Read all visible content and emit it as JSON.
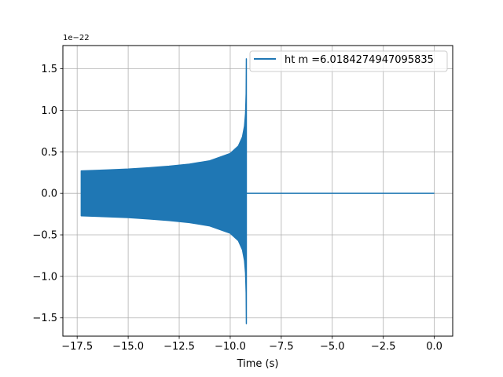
{
  "chart_data": {
    "type": "line",
    "title": "",
    "xlabel": "Time (s)",
    "ylabel": "",
    "y_offset_text": "1e−22",
    "xlim": [
      -18.2,
      0.9
    ],
    "ylim": [
      -1.72,
      1.78
    ],
    "x_ticks": [
      -17.5,
      -15.0,
      -12.5,
      -10.0,
      -7.5,
      -5.0,
      -2.5,
      0.0
    ],
    "x_tick_labels": [
      "−17.5",
      "−15.0",
      "−12.5",
      "−10.0",
      "−7.5",
      "−5.0",
      "−2.5",
      "0.0"
    ],
    "y_ticks": [
      -1.5,
      -1.0,
      -0.5,
      0.0,
      0.5,
      1.0,
      1.5
    ],
    "y_tick_labels": [
      "−1.5",
      "−1.0",
      "−0.5",
      "0.0",
      "0.5",
      "1.0",
      "1.5"
    ],
    "grid": true,
    "legend_placement": "upper right",
    "series": [
      {
        "name": "ht m =6.0184274947095835",
        "color": "#1f77b4",
        "oscillation_envelope_upper": {
          "x": [
            -17.3,
            -16,
            -15,
            -14,
            -13,
            -12,
            -11,
            -10,
            -9.6,
            -9.4,
            -9.3,
            -9.25,
            -9.22,
            -9.21
          ],
          "y": [
            0.27,
            0.282,
            0.292,
            0.308,
            0.327,
            0.352,
            0.392,
            0.48,
            0.57,
            0.68,
            0.81,
            0.96,
            1.2,
            1.62
          ]
        },
        "oscillation_envelope_lower": {
          "x": [
            -17.3,
            -16,
            -15,
            -14,
            -13,
            -12,
            -11,
            -10,
            -9.6,
            -9.4,
            -9.3,
            -9.25,
            -9.22,
            -9.21
          ],
          "y": [
            -0.27,
            -0.282,
            -0.292,
            -0.308,
            -0.327,
            -0.352,
            -0.392,
            -0.48,
            -0.57,
            -0.68,
            -0.81,
            -0.96,
            -1.2,
            -1.57
          ]
        },
        "flat_segment": {
          "x": [
            -9.2,
            0.0
          ],
          "y": [
            0.0,
            0.0
          ]
        }
      }
    ]
  }
}
